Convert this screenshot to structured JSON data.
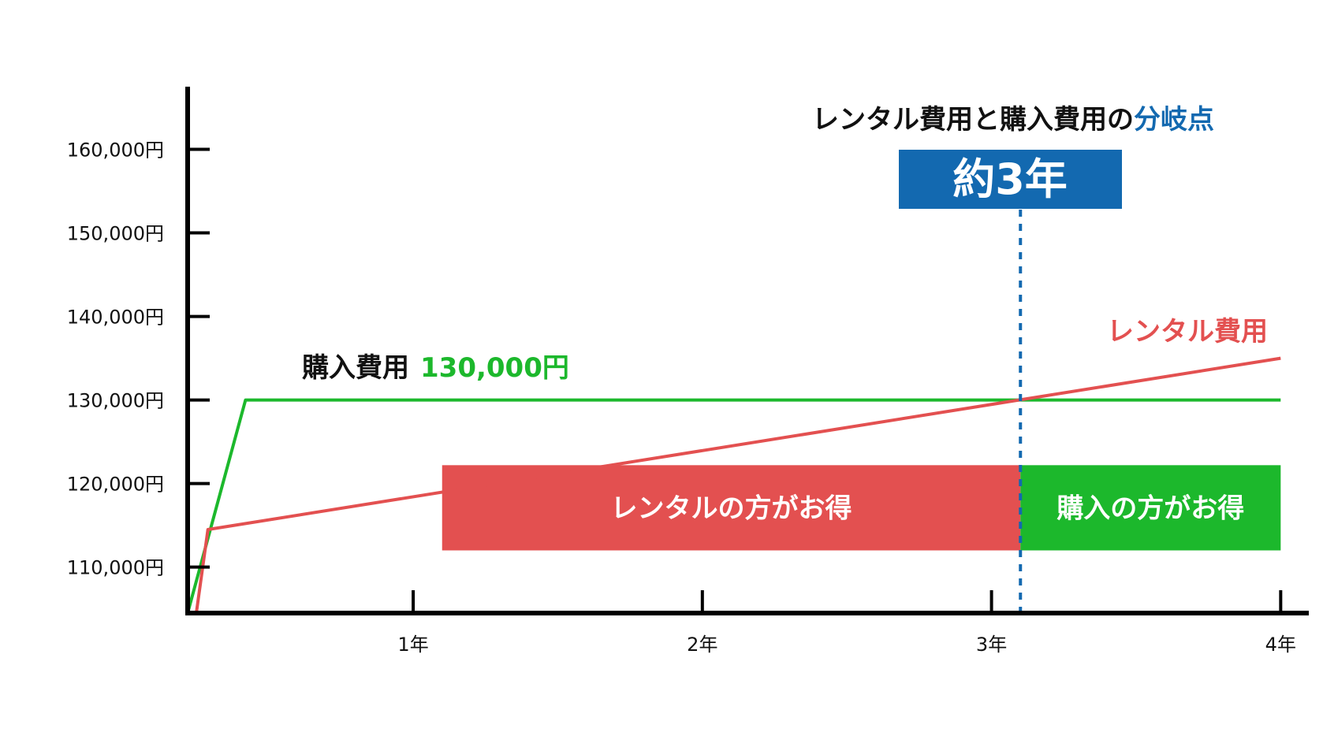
{
  "chart_data": {
    "type": "line",
    "title": "レンタル費用と購入費用の分岐点",
    "title_parts": {
      "prefix": "レンタル費用と購入費用の",
      "highlight": "分岐点"
    },
    "x_ticks": [
      {
        "value": 1,
        "label": "1年"
      },
      {
        "value": 2,
        "label": "2年"
      },
      {
        "value": 3,
        "label": "3年"
      },
      {
        "value": 4,
        "label": "4年"
      }
    ],
    "y_ticks": [
      {
        "value": 110000,
        "label": "110,000円"
      },
      {
        "value": 120000,
        "label": "120,000円"
      },
      {
        "value": 130000,
        "label": "130,000円"
      },
      {
        "value": 140000,
        "label": "140,000円"
      },
      {
        "value": 150000,
        "label": "150,000円"
      },
      {
        "value": 160000,
        "label": "160,000円"
      }
    ],
    "xlim": [
      0.22,
      4.07
    ],
    "ylim": [
      104500,
      167500
    ],
    "series": [
      {
        "name": "購入費用",
        "color": "#1cb82c",
        "points": [
          [
            0.22,
            104500
          ],
          [
            0.42,
            130000
          ],
          [
            4.0,
            130000
          ]
        ]
      },
      {
        "name": "レンタル費用",
        "color": "#e35050",
        "points": [
          [
            0.25,
            104500
          ],
          [
            0.29,
            114500
          ],
          [
            4.0,
            135000
          ]
        ]
      }
    ],
    "labels": {
      "purchase_label": "購入費用",
      "purchase_value": "130,000円",
      "rental_label": "レンタル費用"
    },
    "breakeven": {
      "x": 3.1,
      "label": "約3年",
      "color": "#1369b0",
      "box_color": "#1369b0"
    },
    "regions": [
      {
        "label": "レンタルの方がお得",
        "color": "#e35050",
        "x_from": 1.1,
        "x_to": 3.1,
        "y_from": 112000,
        "y_to": 122200
      },
      {
        "label": "購入の方がお得",
        "color": "#1cb82c",
        "x_from": 3.1,
        "x_to": 4.0,
        "y_from": 112000,
        "y_to": 122200
      }
    ],
    "grid": false
  }
}
